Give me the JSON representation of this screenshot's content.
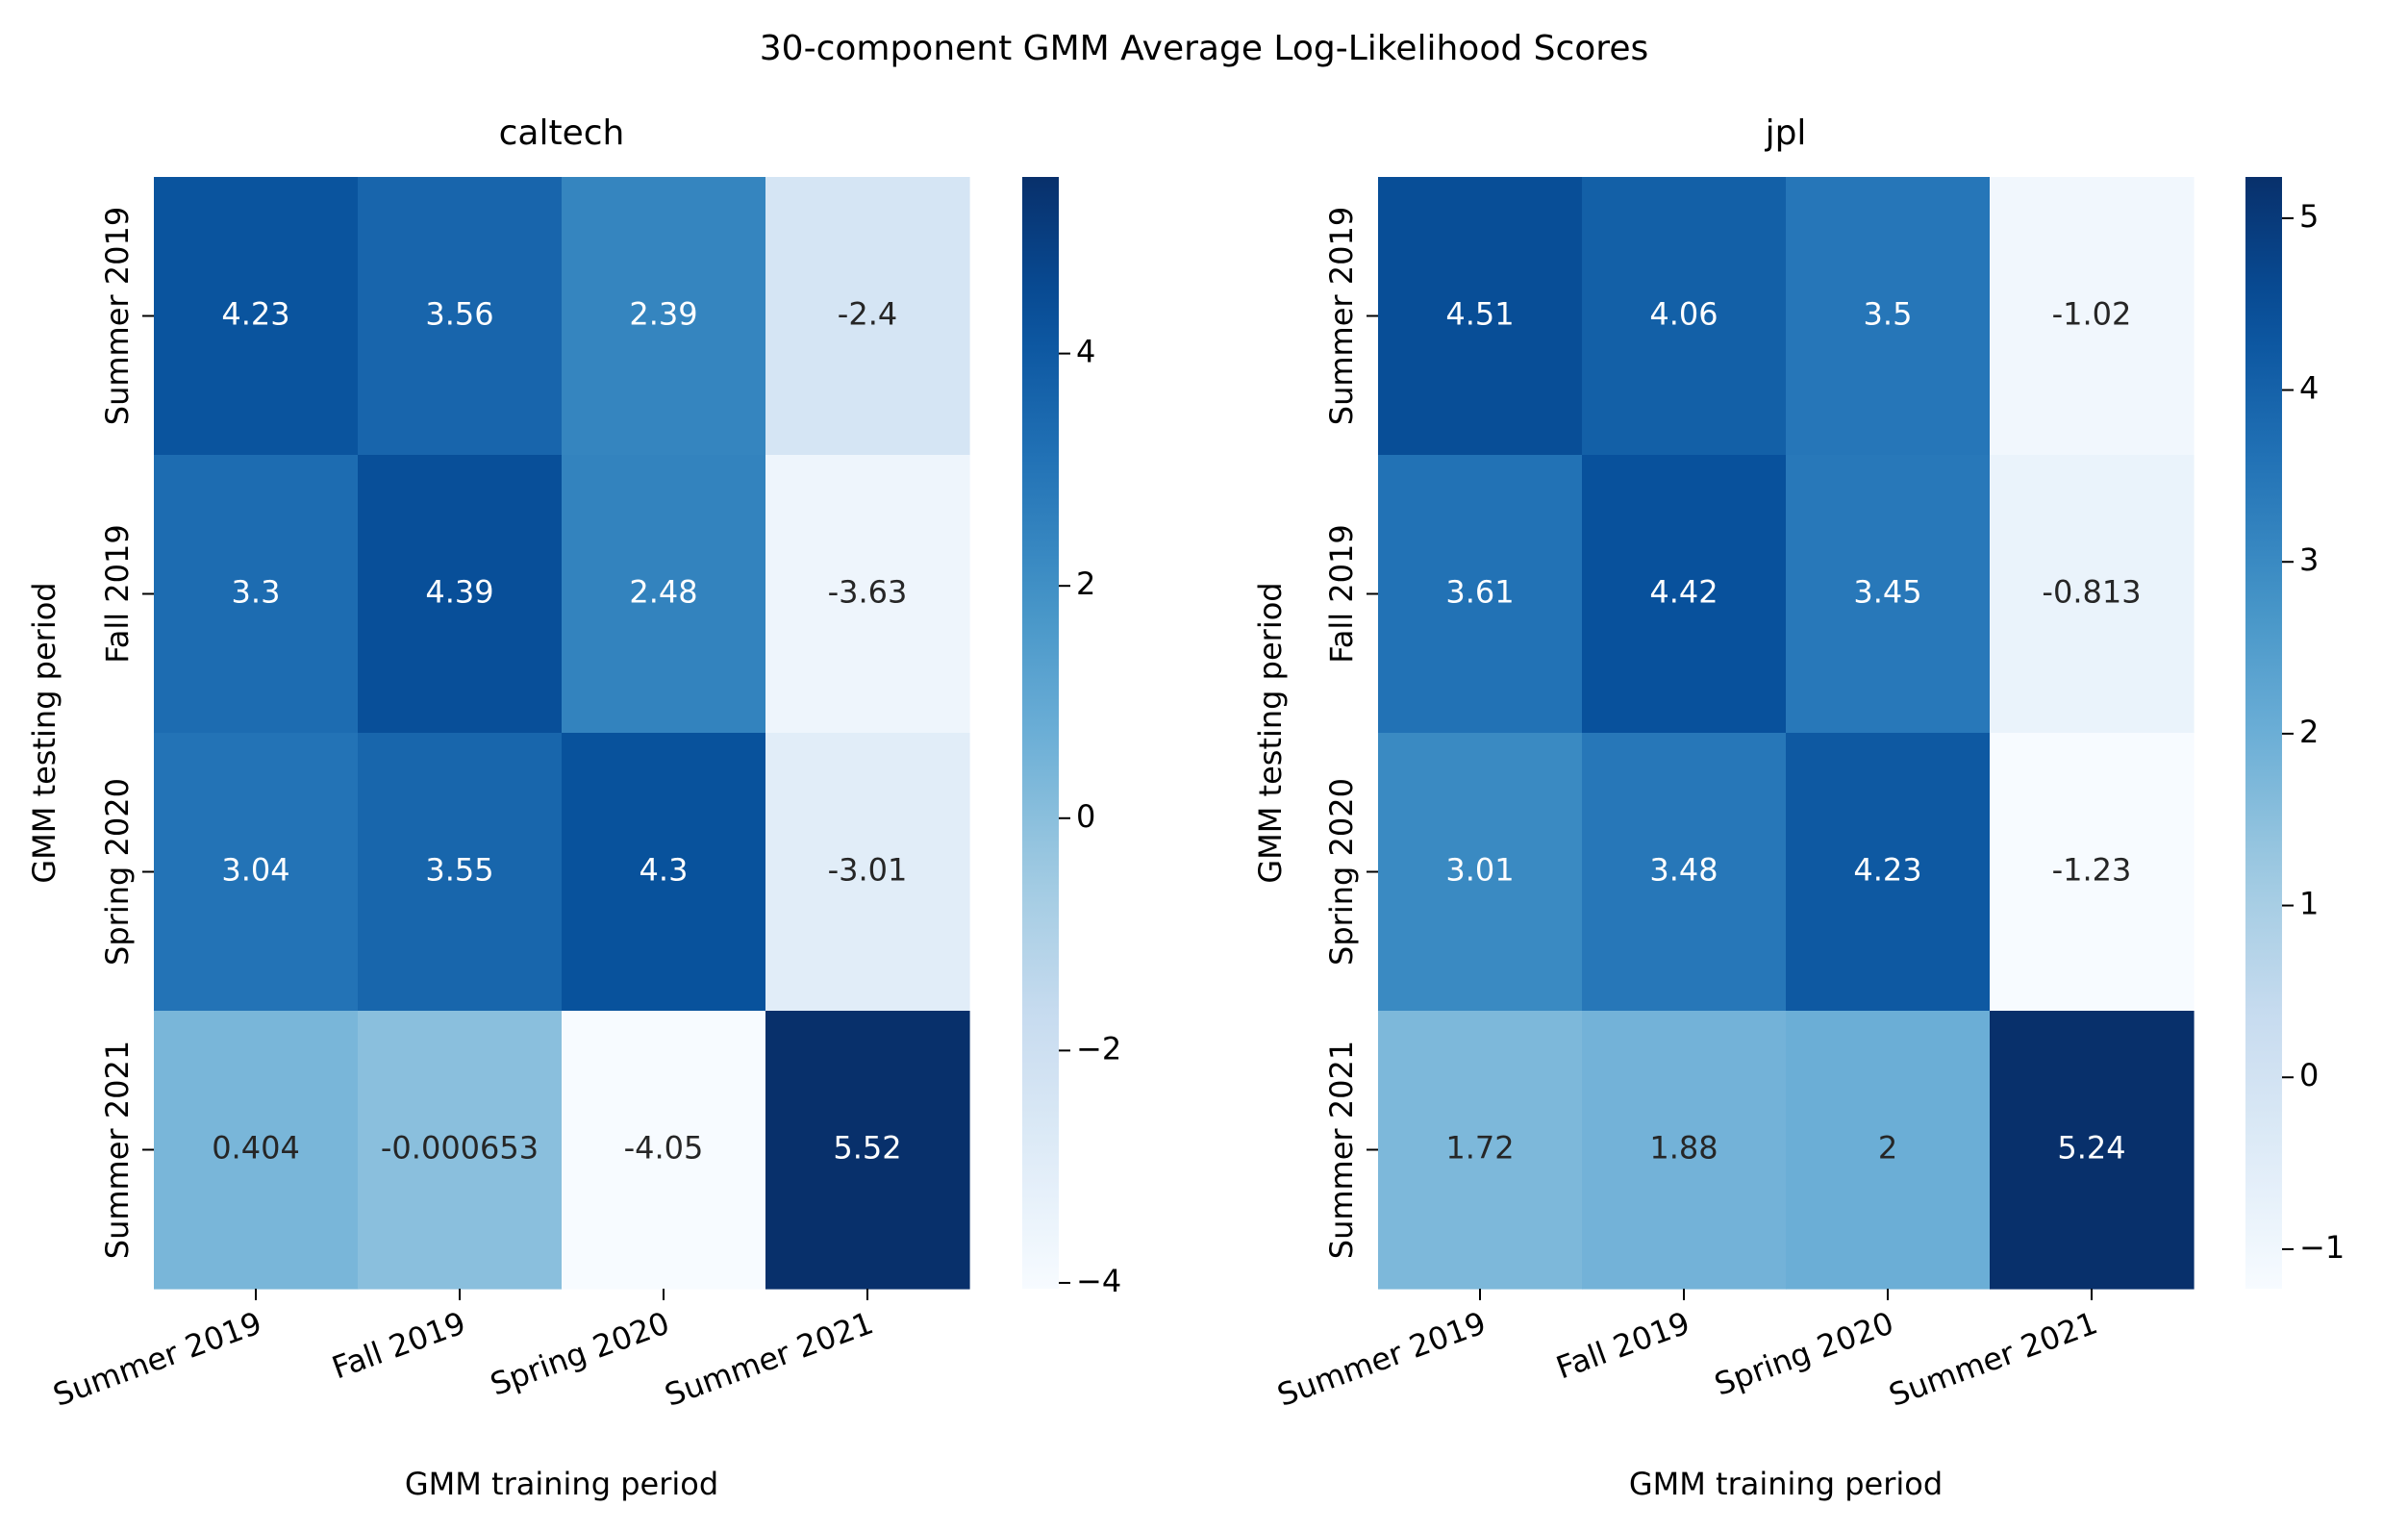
{
  "figure": {
    "suptitle": "30-component GMM Average Log-Likelihood Scores"
  },
  "chart_data": [
    {
      "type": "heatmap",
      "title": "caltech",
      "xlabel": "GMM training period",
      "ylabel": "GMM testing period",
      "x_categories": [
        "Summer 2019",
        "Fall 2019",
        "Spring 2020",
        "Summer 2021"
      ],
      "y_categories": [
        "Summer 2019",
        "Fall 2019",
        "Spring 2020",
        "Summer 2021"
      ],
      "values": [
        [
          4.23,
          3.56,
          2.39,
          -2.4
        ],
        [
          3.3,
          4.39,
          2.48,
          -3.63
        ],
        [
          3.04,
          3.55,
          4.3,
          -3.01
        ],
        [
          0.404,
          -0.000653,
          -4.05,
          5.52
        ]
      ],
      "labels": [
        [
          "4.23",
          "3.56",
          "2.39",
          "-2.4"
        ],
        [
          "3.3",
          "4.39",
          "2.48",
          "-3.63"
        ],
        [
          "3.04",
          "3.55",
          "4.3",
          "-3.01"
        ],
        [
          "0.404",
          "-0.000653",
          "-4.05",
          "5.52"
        ]
      ],
      "colormap": "Blues",
      "vmin": -4.05,
      "vmax": 5.52,
      "colorbar_ticks": [
        {
          "value": 4,
          "label": "4"
        },
        {
          "value": 2,
          "label": "2"
        },
        {
          "value": 0,
          "label": "0"
        },
        {
          "value": -2,
          "label": "−2"
        },
        {
          "value": -4,
          "label": "−4"
        }
      ]
    },
    {
      "type": "heatmap",
      "title": "jpl",
      "xlabel": "GMM training period",
      "ylabel": "GMM testing period",
      "x_categories": [
        "Summer 2019",
        "Fall 2019",
        "Spring 2020",
        "Summer 2021"
      ],
      "y_categories": [
        "Summer 2019",
        "Fall 2019",
        "Spring 2020",
        "Summer 2021"
      ],
      "values": [
        [
          4.51,
          4.06,
          3.5,
          -1.02
        ],
        [
          3.61,
          4.42,
          3.45,
          -0.813
        ],
        [
          3.01,
          3.48,
          4.23,
          -1.23
        ],
        [
          1.72,
          1.88,
          2,
          5.24
        ]
      ],
      "labels": [
        [
          "4.51",
          "4.06",
          "3.5",
          "-1.02"
        ],
        [
          "3.61",
          "4.42",
          "3.45",
          "-0.813"
        ],
        [
          "3.01",
          "3.48",
          "4.23",
          "-1.23"
        ],
        [
          "1.72",
          "1.88",
          "2",
          "5.24"
        ]
      ],
      "colormap": "Blues",
      "vmin": -1.23,
      "vmax": 5.24,
      "colorbar_ticks": [
        {
          "value": 5,
          "label": "5"
        },
        {
          "value": 4,
          "label": "4"
        },
        {
          "value": 3,
          "label": "3"
        },
        {
          "value": 2,
          "label": "2"
        },
        {
          "value": 1,
          "label": "1"
        },
        {
          "value": 0,
          "label": "0"
        },
        {
          "value": -1,
          "label": "−1"
        }
      ]
    }
  ]
}
